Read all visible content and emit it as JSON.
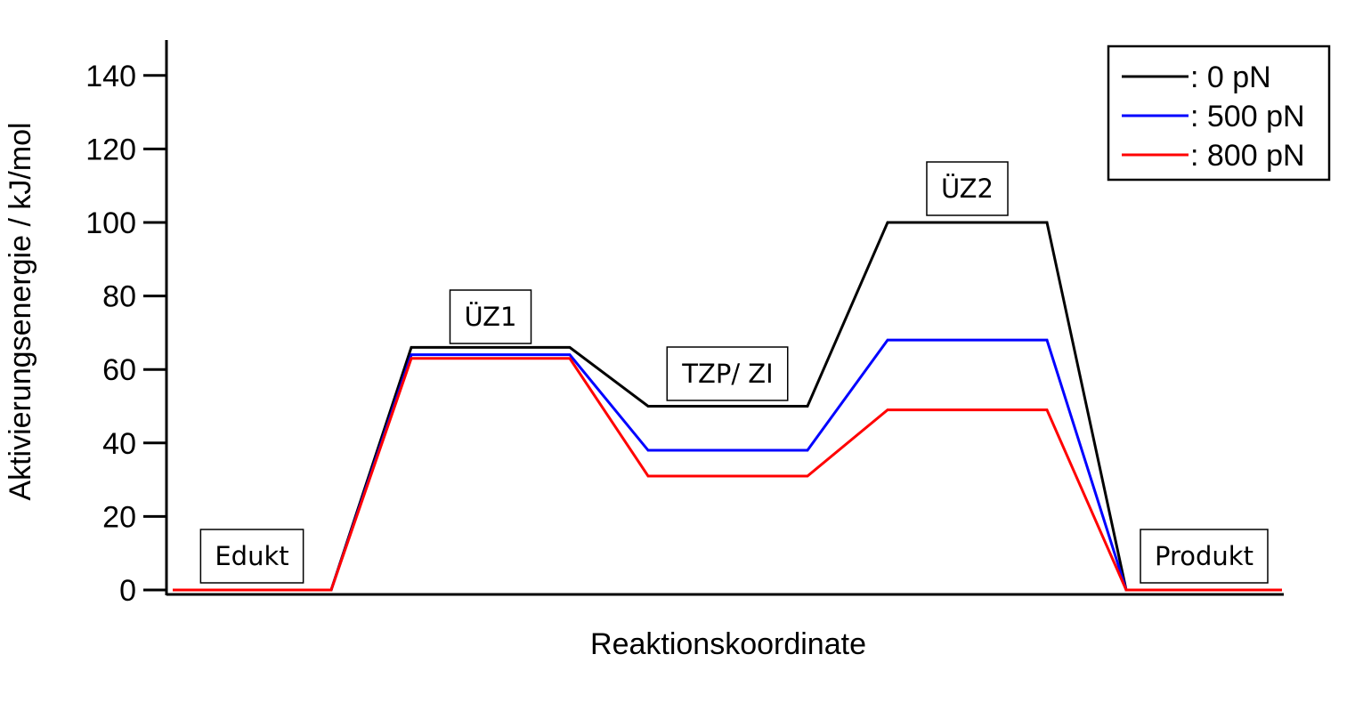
{
  "chart_data": {
    "type": "line",
    "title": "",
    "xlabel": "Reaktionskoordinate",
    "ylabel": "Aktivierungsenergie / kJ/mol",
    "ylim": [
      0,
      150
    ],
    "yticks": [
      0,
      20,
      40,
      60,
      80,
      100,
      120,
      140
    ],
    "xticks_shown": false,
    "grid": false,
    "legend_position": "top-right",
    "stages": [
      "Edukt",
      "ÜZ1",
      "TZP/ ZI",
      "ÜZ2",
      "Produkt"
    ],
    "series": [
      {
        "name": ": 0 pN",
        "color": "#000000",
        "values": [
          0,
          66,
          50,
          100,
          0
        ]
      },
      {
        "name": ": 500 pN",
        "color": "#0000ff",
        "values": [
          0,
          64,
          38,
          68,
          0
        ]
      },
      {
        "name": ": 800 pN",
        "color": "#ff0000",
        "values": [
          0,
          63,
          31,
          49,
          0
        ]
      }
    ],
    "annotations": [
      {
        "text": "Edukt",
        "stage": 0
      },
      {
        "text": "ÜZ1",
        "stage": 1
      },
      {
        "text": "TZP/ ZI",
        "stage": 2
      },
      {
        "text": "ÜZ2",
        "stage": 3
      },
      {
        "text": "Produkt",
        "stage": 4
      }
    ]
  }
}
